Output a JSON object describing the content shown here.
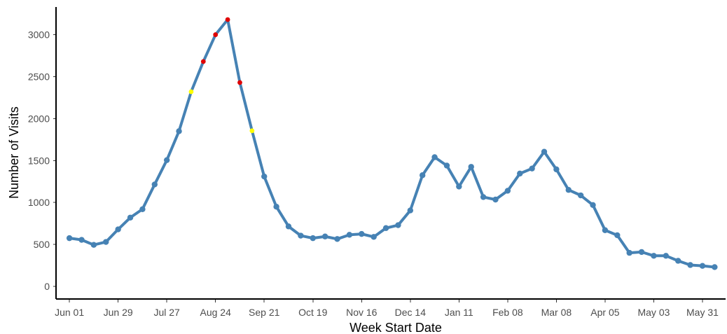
{
  "chart_data": {
    "type": "line",
    "title": "",
    "xlabel": "Week Start Date",
    "ylabel": "Number of Visits",
    "ylim": [
      -150,
      3330
    ],
    "yticks": [
      0,
      500,
      1000,
      1500,
      2000,
      2500,
      3000
    ],
    "x_tick_labels": [
      "Jun 01",
      "Jun 29",
      "Jul 27",
      "Aug 24",
      "Sep 21",
      "Oct 19",
      "Nov 16",
      "Dec 14",
      "Jan 11",
      "Feb 08",
      "Mar 08",
      "Apr 05",
      "May 03",
      "May 31"
    ],
    "x_tick_weeks": [
      0,
      4,
      8,
      12,
      16,
      20,
      24,
      28,
      32,
      36,
      40,
      44,
      48,
      52
    ],
    "xlim_weeks": [
      -1.1,
      53.9
    ],
    "grid": false,
    "legend": "none",
    "colors": {
      "line": "#4682B4",
      "point": "#4682B4",
      "highlight_red": "#E00000",
      "highlight_yellow": "#FFFF00"
    },
    "series": [
      {
        "values": [
          575,
          555,
          495,
          530,
          680,
          820,
          920,
          1215,
          1505,
          1850,
          2320,
          2680,
          3000,
          3180,
          2430,
          1855,
          1310,
          950,
          715,
          605,
          575,
          595,
          565,
          615,
          625,
          590,
          695,
          730,
          905,
          1325,
          1540,
          1440,
          1190,
          1425,
          1065,
          1035,
          1140,
          1345,
          1405,
          1605,
          1395,
          1150,
          1085,
          970,
          670,
          610,
          400,
          410,
          365,
          365,
          305,
          255,
          245,
          230
        ],
        "highlight_red_weeks": [
          11,
          12,
          13,
          14
        ],
        "highlight_yellow_weeks": [
          10,
          15
        ]
      }
    ]
  }
}
